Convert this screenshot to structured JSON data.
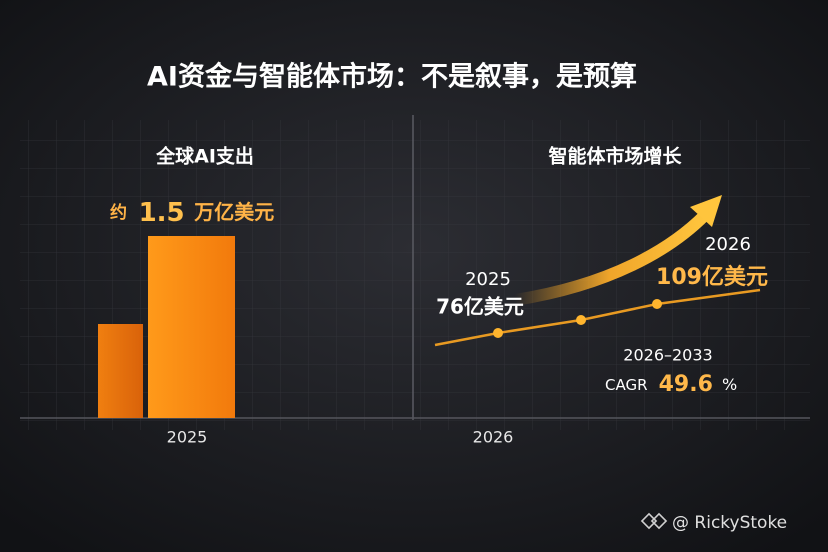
{
  "title": "AI资金与智能体市场：不是叙事，是预算",
  "left": {
    "heading": "全球AI支出",
    "label_prefix": "约",
    "label_value": "1.5",
    "label_unit": "万亿美元",
    "x_label": "2025"
  },
  "right": {
    "heading": "智能体市场增长",
    "start": {
      "year": "2025",
      "value": "76亿美元"
    },
    "end": {
      "year": "2026",
      "value": "109亿美元"
    },
    "period": "2026–2033",
    "cagr_label": "CAGR",
    "cagr_value": "49.6",
    "cagr_unit": "%",
    "x_label": "2026"
  },
  "watermark": "@ RickyStoke"
}
